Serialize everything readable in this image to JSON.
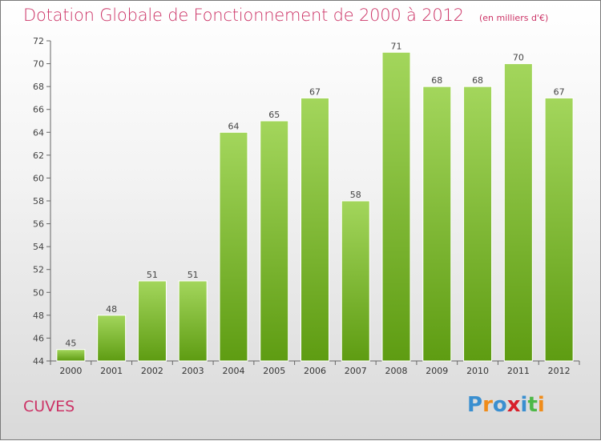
{
  "header": {
    "title": "Dotation Globale de Fonctionnement de 2000 à 2012",
    "subtitle": "(en milliers d'€)"
  },
  "footer": {
    "commune": "CUVES",
    "logo_text": "Proxiti"
  },
  "colors": {
    "title": "#cc3366",
    "bar_top": "#a3d65c",
    "bar_bottom": "#5e9c12",
    "logo": [
      "#3a8fd0",
      "#f08c1a",
      "#3a8fd0",
      "#d81f2a",
      "#3a8fd0",
      "#4db848",
      "#f08c1a"
    ]
  },
  "chart_data": {
    "type": "bar",
    "title": "Dotation Globale de Fonctionnement de 2000 à 2012",
    "subtitle": "(en milliers d'€)",
    "categories": [
      "2000",
      "2001",
      "2002",
      "2003",
      "2004",
      "2005",
      "2006",
      "2007",
      "2008",
      "2009",
      "2010",
      "2011",
      "2012"
    ],
    "values": [
      45,
      48,
      51,
      51,
      64,
      65,
      67,
      58,
      71,
      68,
      68,
      70,
      67
    ],
    "ylim": [
      44,
      72
    ],
    "yticks": [
      44,
      46,
      48,
      50,
      52,
      54,
      56,
      58,
      60,
      62,
      64,
      66,
      68,
      70,
      72
    ],
    "grid": false,
    "xlabel": "",
    "ylabel": ""
  }
}
